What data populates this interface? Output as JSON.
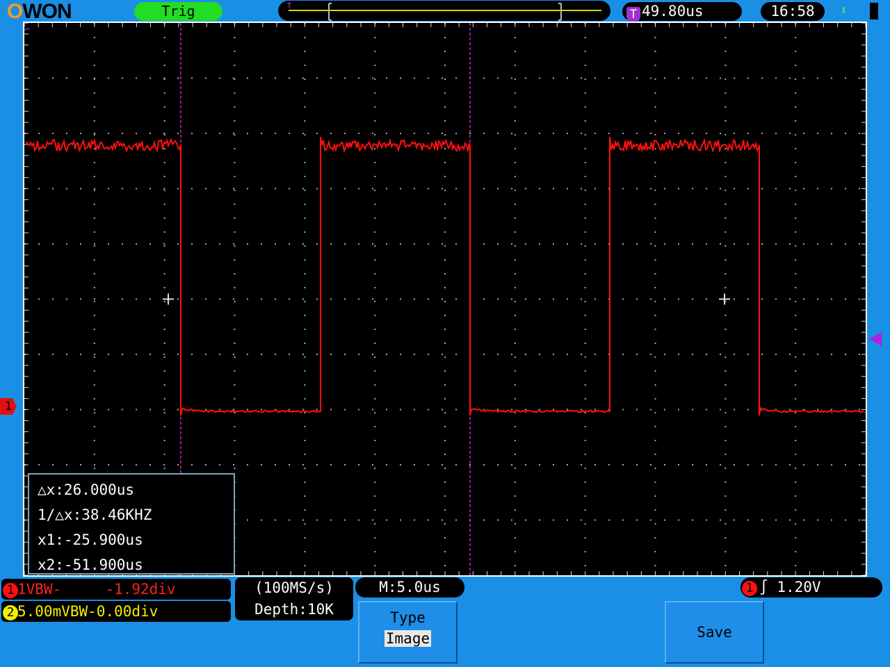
{
  "header": {
    "logo": "OWON",
    "trig_status": "Trig",
    "trigger_time": "49.80us",
    "clock": "16:58"
  },
  "cursor_readout": {
    "dx": "△x:26.000us",
    "inv_dx": "1/△x:38.46KHZ",
    "x1": "x1:-25.900us",
    "x2": "x2:-51.900us"
  },
  "channels": [
    {
      "num": "1",
      "text": "1VBW-     -1.92div",
      "color": "#ff2020"
    },
    {
      "num": "2",
      "text": "5.00mVBW-0.00div",
      "color": "#f0f000"
    }
  ],
  "acquisition": {
    "sample_rate": "(100MS/s)",
    "depth": "Depth:10K"
  },
  "timebase": "M:5.0us",
  "trigger": {
    "source": "1",
    "level": "1.20V"
  },
  "softkeys": {
    "type_label": "Type",
    "type_value": "Image",
    "save_label": "Save"
  },
  "markers": {
    "ch1": "1",
    "trigger": "T"
  },
  "colors": {
    "ch1": "#ff1010",
    "cursor": "#d020d0",
    "background": "#1a8fe6"
  }
}
